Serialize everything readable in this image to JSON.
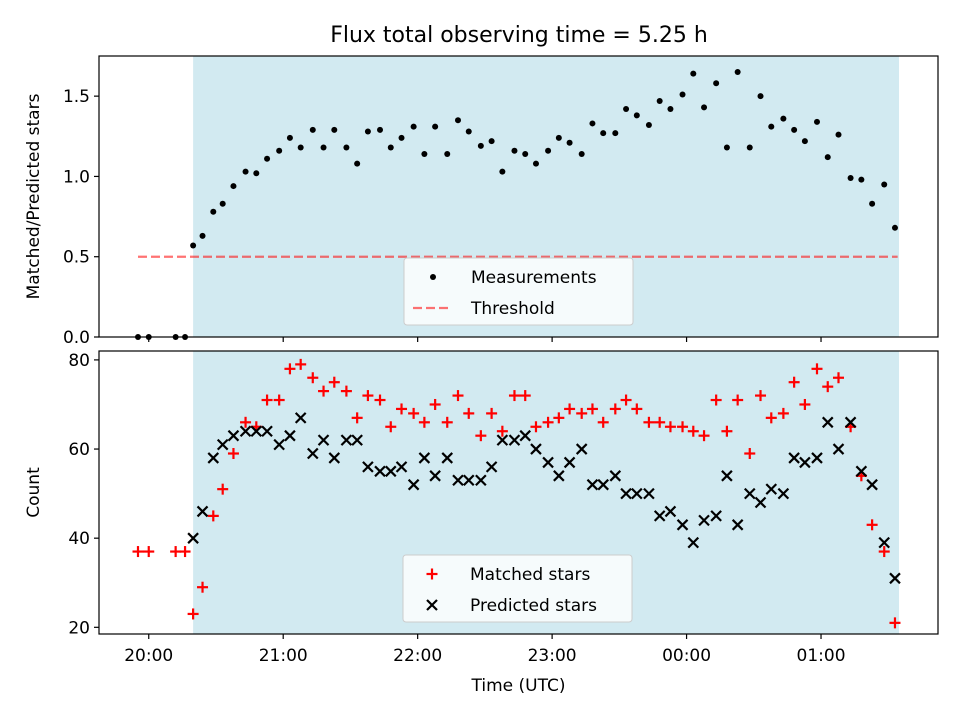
{
  "title": "Flux total observing time = 5.25 h",
  "colors": {
    "shade": "#add8e6",
    "measurement": "#000000",
    "threshold": "#ff0000",
    "matched": "#ff0000",
    "predicted": "#000000"
  },
  "chart_data": [
    {
      "type": "scatter",
      "ylabel": "Matched/Predicted stars",
      "xlabel": "",
      "xlim_hours": [
        19.63,
        25.87
      ],
      "ylim": [
        0,
        1.75
      ],
      "yticks": [
        0.0,
        0.5,
        1.0,
        1.5
      ],
      "ytick_labels": [
        "0.0",
        "0.5",
        "1.0",
        "1.5"
      ],
      "observing_window_hours": [
        20.33,
        25.58
      ],
      "legend": {
        "location": "lower center",
        "entries": [
          "Measurements",
          "Threshold"
        ]
      },
      "threshold": {
        "name": "Threshold",
        "value": 0.5,
        "x_range_hours": [
          19.92,
          25.57
        ]
      },
      "series": [
        {
          "name": "Measurements",
          "x": [
            19.92,
            20.0,
            20.2,
            20.27,
            20.33,
            20.4,
            20.48,
            20.55,
            20.63,
            20.72,
            20.8,
            20.88,
            20.97,
            21.05,
            21.13,
            21.22,
            21.3,
            21.38,
            21.47,
            21.55,
            21.63,
            21.72,
            21.8,
            21.88,
            21.97,
            22.05,
            22.13,
            22.22,
            22.3,
            22.38,
            22.47,
            22.55,
            22.63,
            22.72,
            22.8,
            22.88,
            22.97,
            23.05,
            23.13,
            23.22,
            23.3,
            23.38,
            23.47,
            23.55,
            23.63,
            23.72,
            23.8,
            23.88,
            23.97,
            24.05,
            24.13,
            24.22,
            24.3,
            24.38,
            24.47,
            24.55,
            24.63,
            24.72,
            24.8,
            24.88,
            24.97,
            25.05,
            25.13,
            25.22,
            25.3,
            25.38,
            25.47,
            25.55
          ],
          "y": [
            0.0,
            0.0,
            0.0,
            0.0,
            0.57,
            0.63,
            0.78,
            0.83,
            0.94,
            1.03,
            1.02,
            1.11,
            1.16,
            1.24,
            1.18,
            1.29,
            1.18,
            1.29,
            1.18,
            1.08,
            1.28,
            1.29,
            1.18,
            1.24,
            1.31,
            1.14,
            1.31,
            1.14,
            1.35,
            1.28,
            1.19,
            1.22,
            1.03,
            1.16,
            1.14,
            1.08,
            1.16,
            1.24,
            1.21,
            1.14,
            1.33,
            1.27,
            1.27,
            1.42,
            1.38,
            1.32,
            1.47,
            1.42,
            1.51,
            1.64,
            1.43,
            1.58,
            1.18,
            1.65,
            1.18,
            1.5,
            1.31,
            1.36,
            1.29,
            1.22,
            1.34,
            1.12,
            1.26,
            0.99,
            0.98,
            0.83,
            0.95,
            0.68
          ]
        }
      ]
    },
    {
      "type": "scatter",
      "ylabel": "Count",
      "xlabel": "Time (UTC)",
      "xlim_hours": [
        19.63,
        25.87
      ],
      "ylim": [
        18.5,
        82
      ],
      "yticks": [
        20,
        40,
        60,
        80
      ],
      "ytick_labels": [
        "20",
        "40",
        "60",
        "80"
      ],
      "xticks_hours": [
        20,
        21,
        22,
        23,
        24,
        25
      ],
      "xtick_labels": [
        "20:00",
        "21:00",
        "22:00",
        "23:00",
        "00:00",
        "01:00"
      ],
      "observing_window_hours": [
        20.33,
        25.58
      ],
      "legend": {
        "location": "lower center",
        "entries": [
          "Matched stars",
          "Predicted stars"
        ]
      },
      "series": [
        {
          "name": "Matched stars",
          "marker": "+",
          "x": [
            19.92,
            20.0,
            20.2,
            20.27,
            20.33,
            20.4,
            20.48,
            20.55,
            20.63,
            20.72,
            20.8,
            20.88,
            20.97,
            21.05,
            21.13,
            21.22,
            21.3,
            21.38,
            21.47,
            21.55,
            21.63,
            21.72,
            21.8,
            21.88,
            21.97,
            22.05,
            22.13,
            22.22,
            22.3,
            22.38,
            22.47,
            22.55,
            22.63,
            22.72,
            22.8,
            22.88,
            22.97,
            23.05,
            23.13,
            23.22,
            23.3,
            23.38,
            23.47,
            23.55,
            23.63,
            23.72,
            23.8,
            23.88,
            23.97,
            24.05,
            24.13,
            24.22,
            24.3,
            24.38,
            24.47,
            24.55,
            24.63,
            24.72,
            24.8,
            24.88,
            24.97,
            25.05,
            25.13,
            25.22,
            25.3,
            25.38,
            25.47,
            25.55
          ],
          "y": [
            37,
            37,
            37,
            37,
            23,
            29,
            45,
            51,
            59,
            66,
            65,
            71,
            71,
            78,
            79,
            76,
            73,
            75,
            73,
            67,
            72,
            71,
            65,
            69,
            68,
            66,
            70,
            66,
            72,
            68,
            63,
            68,
            64,
            72,
            72,
            65,
            66,
            67,
            69,
            68,
            69,
            66,
            69,
            71,
            69,
            66,
            66,
            65,
            65,
            64,
            63,
            71,
            64,
            71,
            59,
            72,
            67,
            68,
            75,
            70,
            78,
            74,
            76,
            65,
            54,
            43,
            37,
            21
          ]
        },
        {
          "name": "Predicted stars",
          "marker": "x",
          "x": [
            20.33,
            20.4,
            20.48,
            20.55,
            20.63,
            20.72,
            20.8,
            20.88,
            20.97,
            21.05,
            21.13,
            21.22,
            21.3,
            21.38,
            21.47,
            21.55,
            21.63,
            21.72,
            21.8,
            21.88,
            21.97,
            22.05,
            22.13,
            22.22,
            22.3,
            22.38,
            22.47,
            22.55,
            22.63,
            22.72,
            22.8,
            22.88,
            22.97,
            23.05,
            23.13,
            23.22,
            23.3,
            23.38,
            23.47,
            23.55,
            23.63,
            23.72,
            23.8,
            23.88,
            23.97,
            24.05,
            24.13,
            24.22,
            24.3,
            24.38,
            24.47,
            24.55,
            24.63,
            24.72,
            24.8,
            24.88,
            24.97,
            25.05,
            25.13,
            25.22,
            25.3,
            25.38,
            25.47,
            25.55
          ],
          "y": [
            40,
            46,
            58,
            61,
            63,
            64,
            64,
            64,
            61,
            63,
            67,
            59,
            62,
            58,
            62,
            62,
            56,
            55,
            55,
            56,
            52,
            58,
            54,
            58,
            53,
            53,
            53,
            56,
            62,
            62,
            63,
            60,
            57,
            54,
            57,
            60,
            52,
            52,
            54,
            50,
            50,
            50,
            45,
            46,
            43,
            39,
            44,
            45,
            54,
            43,
            50,
            48,
            51,
            50,
            58,
            57,
            58,
            66,
            60,
            66,
            55,
            52,
            39,
            31
          ]
        }
      ]
    }
  ]
}
